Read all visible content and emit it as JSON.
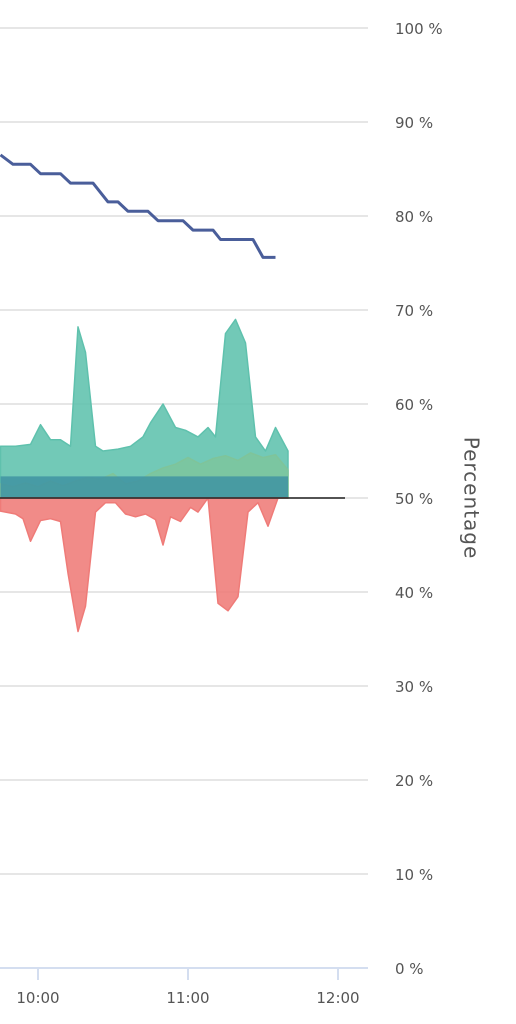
{
  "chart_data": {
    "type": "area",
    "ylabel": "Percentage",
    "xlabel": "",
    "ylim": [
      0,
      100
    ],
    "y_ticks": [
      0,
      10,
      20,
      30,
      40,
      50,
      60,
      70,
      80,
      90,
      100
    ],
    "y_tick_labels": [
      "0 %",
      "10 %",
      "20 %",
      "30 %",
      "40 %",
      "50 %",
      "60 %",
      "70 %",
      "80 %",
      "90 %",
      "100 %"
    ],
    "y_axis_side": "right",
    "grid": true,
    "x_ticks": [
      {
        "label": "10:00",
        "t": 600
      },
      {
        "label": "11:00",
        "t": 660
      },
      {
        "label": "12:00",
        "t": 720
      }
    ],
    "x_range": [
      585,
      718
    ],
    "series": [
      {
        "role": "positive-area",
        "color": "#5fc1ad",
        "points": [
          [
            585,
            55.5
          ],
          [
            591,
            55.5
          ],
          [
            597,
            55.7
          ],
          [
            601,
            57.8
          ],
          [
            605,
            56.2
          ],
          [
            609,
            56.2
          ],
          [
            613,
            55.5
          ],
          [
            616,
            68.2
          ],
          [
            619,
            65.5
          ],
          [
            623,
            55.5
          ],
          [
            626,
            55
          ],
          [
            632,
            55.2
          ],
          [
            637,
            55.5
          ],
          [
            642,
            56.5
          ],
          [
            645,
            58
          ],
          [
            650,
            60
          ],
          [
            655,
            57.5
          ],
          [
            659,
            57.2
          ],
          [
            664,
            56.5
          ],
          [
            668,
            57.5
          ],
          [
            671,
            56.5
          ],
          [
            675,
            67.5
          ],
          [
            679,
            69
          ],
          [
            683,
            66.5
          ],
          [
            687,
            56.5
          ],
          [
            691,
            55
          ],
          [
            695,
            57.5
          ],
          [
            698,
            56
          ],
          [
            700,
            55
          ]
        ]
      },
      {
        "role": "secondary-positive-area",
        "color": "#7fc49a",
        "points": [
          [
            585,
            51.5
          ],
          [
            590,
            51.2
          ],
          [
            595,
            51.6
          ],
          [
            600,
            51.2
          ],
          [
            605,
            51.8
          ],
          [
            610,
            51.3
          ],
          [
            615,
            51.8
          ],
          [
            620,
            52.2
          ],
          [
            625,
            52
          ],
          [
            630,
            52.6
          ],
          [
            635,
            51.5
          ],
          [
            640,
            51.8
          ],
          [
            645,
            52.6
          ],
          [
            650,
            53.2
          ],
          [
            655,
            53.6
          ],
          [
            660,
            54.3
          ],
          [
            665,
            53.6
          ],
          [
            670,
            54.2
          ],
          [
            675,
            54.5
          ],
          [
            680,
            54
          ],
          [
            685,
            54.8
          ],
          [
            690,
            54.3
          ],
          [
            695,
            54.6
          ],
          [
            700,
            53
          ]
        ]
      },
      {
        "role": "baseline-band",
        "color": "#3f93a2",
        "points": [
          [
            585,
            52.3
          ],
          [
            700,
            52.3
          ]
        ]
      },
      {
        "role": "negative-area",
        "color": "#ef7b78",
        "points": [
          [
            585,
            48.6
          ],
          [
            591,
            48.3
          ],
          [
            594,
            47.8
          ],
          [
            597,
            45.4
          ],
          [
            601,
            47.6
          ],
          [
            605,
            47.8
          ],
          [
            609,
            47.5
          ],
          [
            612,
            42
          ],
          [
            616,
            35.8
          ],
          [
            619,
            38.5
          ],
          [
            623,
            48.5
          ],
          [
            627,
            49.5
          ],
          [
            631,
            49.5
          ],
          [
            635,
            48.3
          ],
          [
            639,
            48
          ],
          [
            643,
            48.3
          ],
          [
            647,
            47.7
          ],
          [
            650,
            45
          ],
          [
            653,
            48
          ],
          [
            657,
            47.5
          ],
          [
            661,
            49
          ],
          [
            664,
            48.5
          ],
          [
            668,
            50
          ],
          [
            672,
            38.8
          ],
          [
            676,
            38
          ],
          [
            680,
            39.5
          ],
          [
            684,
            48.5
          ],
          [
            688,
            49.5
          ],
          [
            692,
            47
          ],
          [
            696,
            50
          ],
          [
            700,
            50
          ]
        ]
      },
      {
        "role": "trend-line",
        "color": "#4a5e9a",
        "points": [
          [
            585,
            86.5
          ],
          [
            590,
            85.5
          ],
          [
            597,
            85.5
          ],
          [
            601,
            84.5
          ],
          [
            609,
            84.5
          ],
          [
            613,
            83.5
          ],
          [
            622,
            83.5
          ],
          [
            628,
            81.5
          ],
          [
            632,
            81.5
          ],
          [
            636,
            80.5
          ],
          [
            644,
            80.5
          ],
          [
            648,
            79.5
          ],
          [
            658,
            79.5
          ],
          [
            662,
            78.5
          ],
          [
            670,
            78.5
          ],
          [
            673,
            77.5
          ],
          [
            686,
            77.5
          ],
          [
            690,
            75.6
          ],
          [
            695,
            75.6
          ]
        ]
      }
    ],
    "colors": {
      "grid": "#e6e6e6",
      "axis": "#d4def0",
      "zero_line": "#222222",
      "text": "#555555"
    }
  }
}
